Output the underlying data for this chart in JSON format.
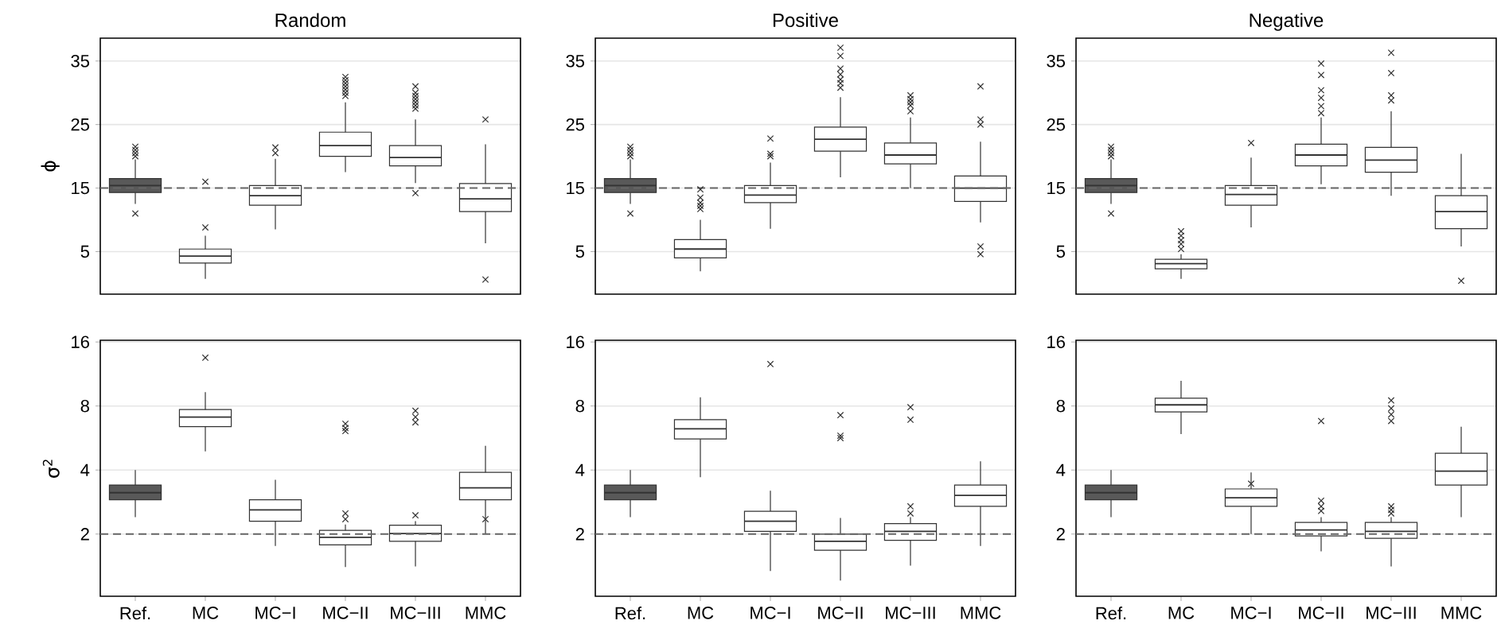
{
  "chart_data": [
    {
      "type": "box",
      "title": "Random",
      "ylabel": "ϕ",
      "categories": [
        null,
        null,
        null,
        null,
        null,
        null
      ],
      "colors": [
        "#595959",
        "#ffffff",
        "#ffffff",
        "#ffffff",
        "#ffffff",
        "#ffffff"
      ],
      "ylim": [
        -1.7,
        38.6
      ],
      "yticks": [
        5,
        15,
        25,
        35
      ],
      "grid": "y",
      "marker": "cross",
      "tick_labels": "y",
      "ref_lines": [
        {
          "axis": "y",
          "value": 15,
          "line_style": "dashed",
          "color": "#666666"
        }
      ],
      "boxes": [
        {
          "low": 12.5,
          "q1": 14.3,
          "median": 15.4,
          "q3": 16.5,
          "high": 19.5,
          "outliers": [
            11,
            20,
            20.5,
            21,
            21.5
          ]
        },
        {
          "low": 0.7,
          "q1": 3.2,
          "median": 4.3,
          "q3": 5.4,
          "high": 7.5,
          "outliers": [
            8.8,
            16
          ]
        },
        {
          "low": 8.5,
          "q1": 12.3,
          "median": 13.8,
          "q3": 15.4,
          "high": 19.6,
          "outliers": [
            20.5,
            21.4
          ]
        },
        {
          "low": 17.5,
          "q1": 20,
          "median": 21.7,
          "q3": 23.8,
          "high": 28.5,
          "outliers": [
            29.5,
            30,
            30.5,
            31,
            31.5,
            32,
            32.5
          ]
        },
        {
          "low": 15.8,
          "q1": 18.5,
          "median": 19.8,
          "q3": 21.7,
          "high": 25.8,
          "outliers": [
            14.2,
            27.5,
            28,
            28.5,
            29,
            29.5,
            30,
            31
          ]
        },
        {
          "low": 6.3,
          "q1": 11.3,
          "median": 13.3,
          "q3": 15.7,
          "high": 21.9,
          "outliers": [
            0.6,
            25.8
          ]
        }
      ]
    },
    {
      "type": "box",
      "title": "Positive",
      "categories": [
        null,
        null,
        null,
        null,
        null,
        null
      ],
      "colors": [
        "#595959",
        "#ffffff",
        "#ffffff",
        "#ffffff",
        "#ffffff",
        "#ffffff"
      ],
      "ylim": [
        -1.7,
        38.6
      ],
      "yticks": [
        5,
        15,
        25,
        35
      ],
      "grid": "y",
      "marker": "cross",
      "tick_labels": "y",
      "ref_lines": [
        {
          "axis": "y",
          "value": 15,
          "line_style": "dashed",
          "color": "#666666"
        }
      ],
      "boxes": [
        {
          "low": 12.5,
          "q1": 14.3,
          "median": 15.4,
          "q3": 16.5,
          "high": 19.5,
          "outliers": [
            11,
            20,
            20.5,
            21,
            21.5
          ]
        },
        {
          "low": 1.9,
          "q1": 4.0,
          "median": 5.4,
          "q3": 6.9,
          "high": 10,
          "outliers": [
            11.7,
            12.2,
            12.7,
            13.5,
            14.8
          ]
        },
        {
          "low": 8.6,
          "q1": 12.7,
          "median": 13.9,
          "q3": 15.4,
          "high": 19,
          "outliers": [
            20,
            20.4,
            22.8
          ]
        },
        {
          "low": 16.7,
          "q1": 20.8,
          "median": 22.7,
          "q3": 24.6,
          "high": 29.3,
          "outliers": [
            30.8,
            31.5,
            32.1,
            32.9,
            33.8,
            35.8,
            37.1
          ]
        },
        {
          "low": 15,
          "q1": 18.8,
          "median": 20.2,
          "q3": 22.1,
          "high": 26.1,
          "outliers": [
            27.1,
            28,
            28.5,
            29,
            29.6
          ]
        },
        {
          "low": 9.6,
          "q1": 12.9,
          "median": 15,
          "q3": 16.9,
          "high": 22.3,
          "outliers": [
            4.6,
            5.8,
            25,
            25.8,
            31
          ]
        }
      ]
    },
    {
      "type": "box",
      "title": "Negative",
      "categories": [
        null,
        null,
        null,
        null,
        null,
        null
      ],
      "colors": [
        "#595959",
        "#ffffff",
        "#ffffff",
        "#ffffff",
        "#ffffff",
        "#ffffff"
      ],
      "ylim": [
        -1.7,
        38.6
      ],
      "yticks": [
        5,
        15,
        25,
        35
      ],
      "grid": "y",
      "marker": "cross",
      "tick_labels": "y",
      "ref_lines": [
        {
          "axis": "y",
          "value": 15,
          "line_style": "dashed",
          "color": "#666666"
        }
      ],
      "boxes": [
        {
          "low": 12.5,
          "q1": 14.3,
          "median": 15.4,
          "q3": 16.5,
          "high": 19.5,
          "outliers": [
            11,
            20,
            20.5,
            21,
            21.5
          ]
        },
        {
          "low": 0.7,
          "q1": 2.3,
          "median": 3.1,
          "q3": 3.8,
          "high": 4.6,
          "outliers": [
            5.4,
            6.2,
            6.8,
            7.5,
            8.2
          ]
        },
        {
          "low": 8.8,
          "q1": 12.3,
          "median": 14,
          "q3": 15.4,
          "high": 19.8,
          "outliers": [
            22.1
          ]
        },
        {
          "low": 15.6,
          "q1": 18.5,
          "median": 20.2,
          "q3": 21.9,
          "high": 26.1,
          "outliers": [
            26.8,
            27.9,
            29.2,
            30.4,
            32.8,
            34.6
          ]
        },
        {
          "low": 13.8,
          "q1": 17.5,
          "median": 19.4,
          "q3": 21.4,
          "high": 27.1,
          "outliers": [
            28.8,
            29.6,
            33.1,
            36.3
          ]
        },
        {
          "low": 5.8,
          "q1": 8.6,
          "median": 11.3,
          "q3": 13.8,
          "high": 20.4,
          "outliers": [
            0.4
          ]
        }
      ]
    },
    {
      "type": "box",
      "ylabel": "σ$^{2}$",
      "categories": [
        "Ref.",
        "MC",
        "MC−I",
        "MC−II",
        "MC−III",
        "MMC"
      ],
      "colors": [
        "#595959",
        "#ffffff",
        "#ffffff",
        "#ffffff",
        "#ffffff",
        "#ffffff"
      ],
      "log": "y",
      "ylim": [
        1.02,
        16.3
      ],
      "yticks": [
        2,
        4,
        8,
        16
      ],
      "grid": "y",
      "marker": "cross",
      "ref_lines": [
        {
          "axis": "y",
          "value": 2,
          "line_style": "dashed",
          "color": "#666666"
        }
      ],
      "boxes": [
        {
          "low": 2.4,
          "q1": 2.9,
          "median": 3.13,
          "q3": 3.4,
          "high": 4.0
        },
        {
          "low": 4.9,
          "q1": 6.4,
          "median": 7.1,
          "q3": 7.7,
          "high": 9.3,
          "outliers": [
            13.5
          ]
        },
        {
          "low": 1.76,
          "q1": 2.3,
          "median": 2.6,
          "q3": 2.9,
          "high": 3.6
        },
        {
          "low": 1.4,
          "q1": 1.78,
          "median": 1.93,
          "q3": 2.08,
          "high": 2.22,
          "outliers": [
            2.35,
            2.5,
            6.1,
            6.3,
            6.6
          ]
        },
        {
          "low": 1.41,
          "q1": 1.85,
          "median": 2.01,
          "q3": 2.2,
          "high": 2.3,
          "outliers": [
            2.45,
            6.7,
            7.1,
            7.6
          ]
        },
        {
          "low": 2.0,
          "q1": 2.9,
          "median": 3.3,
          "q3": 3.9,
          "high": 5.2,
          "outliers": [
            2.35
          ]
        }
      ]
    },
    {
      "type": "box",
      "categories": [
        "Ref.",
        "MC",
        "MC−I",
        "MC−II",
        "MC−III",
        "MMC"
      ],
      "colors": [
        "#595959",
        "#ffffff",
        "#ffffff",
        "#ffffff",
        "#ffffff",
        "#ffffff"
      ],
      "log": "y",
      "ylim": [
        1.02,
        16.3
      ],
      "yticks": [
        2,
        4,
        8,
        16
      ],
      "grid": "y",
      "marker": "cross",
      "ref_lines": [
        {
          "axis": "y",
          "value": 2,
          "line_style": "dashed",
          "color": "#666666"
        }
      ],
      "boxes": [
        {
          "low": 2.4,
          "q1": 2.9,
          "median": 3.13,
          "q3": 3.4,
          "high": 4.0
        },
        {
          "low": 3.7,
          "q1": 5.6,
          "median": 6.25,
          "q3": 6.9,
          "high": 8.8
        },
        {
          "low": 1.34,
          "q1": 2.06,
          "median": 2.3,
          "q3": 2.56,
          "high": 3.2,
          "outliers": [
            12.6
          ]
        },
        {
          "low": 1.21,
          "q1": 1.68,
          "median": 1.85,
          "q3": 2.0,
          "high": 2.38,
          "outliers": [
            5.65,
            5.8,
            7.25
          ]
        },
        {
          "low": 1.42,
          "q1": 1.87,
          "median": 2.06,
          "q3": 2.24,
          "high": 2.4,
          "outliers": [
            2.5,
            2.7,
            6.9,
            7.9
          ]
        },
        {
          "low": 1.76,
          "q1": 2.7,
          "median": 3.04,
          "q3": 3.4,
          "high": 4.4
        }
      ]
    },
    {
      "type": "box",
      "categories": [
        "Ref.",
        "MC",
        "MC−I",
        "MC−II",
        "MC−III",
        "MMC"
      ],
      "colors": [
        "#595959",
        "#ffffff",
        "#ffffff",
        "#ffffff",
        "#ffffff",
        "#ffffff"
      ],
      "log": "y",
      "ylim": [
        1.02,
        16.3
      ],
      "yticks": [
        2,
        4,
        8,
        16
      ],
      "grid": "y",
      "marker": "cross",
      "ref_lines": [
        {
          "axis": "y",
          "value": 2,
          "line_style": "dashed",
          "color": "#666666"
        }
      ],
      "boxes": [
        {
          "low": 2.4,
          "q1": 2.9,
          "median": 3.13,
          "q3": 3.4,
          "high": 4.0
        },
        {
          "low": 5.9,
          "q1": 7.5,
          "median": 8.1,
          "q3": 8.7,
          "high": 10.5
        },
        {
          "low": 2.0,
          "q1": 2.7,
          "median": 2.96,
          "q3": 3.26,
          "high": 3.9,
          "outliers": [
            3.45
          ]
        },
        {
          "low": 1.66,
          "q1": 1.96,
          "median": 2.09,
          "q3": 2.27,
          "high": 2.4,
          "outliers": [
            2.57,
            2.7,
            2.87,
            6.8
          ]
        },
        {
          "low": 1.41,
          "q1": 1.91,
          "median": 2.06,
          "q3": 2.27,
          "high": 2.4,
          "outliers": [
            2.5,
            2.6,
            2.7,
            6.8,
            7.3,
            7.8,
            8.5
          ]
        },
        {
          "low": 2.4,
          "q1": 3.4,
          "median": 3.95,
          "q3": 4.8,
          "high": 6.4
        }
      ]
    }
  ]
}
